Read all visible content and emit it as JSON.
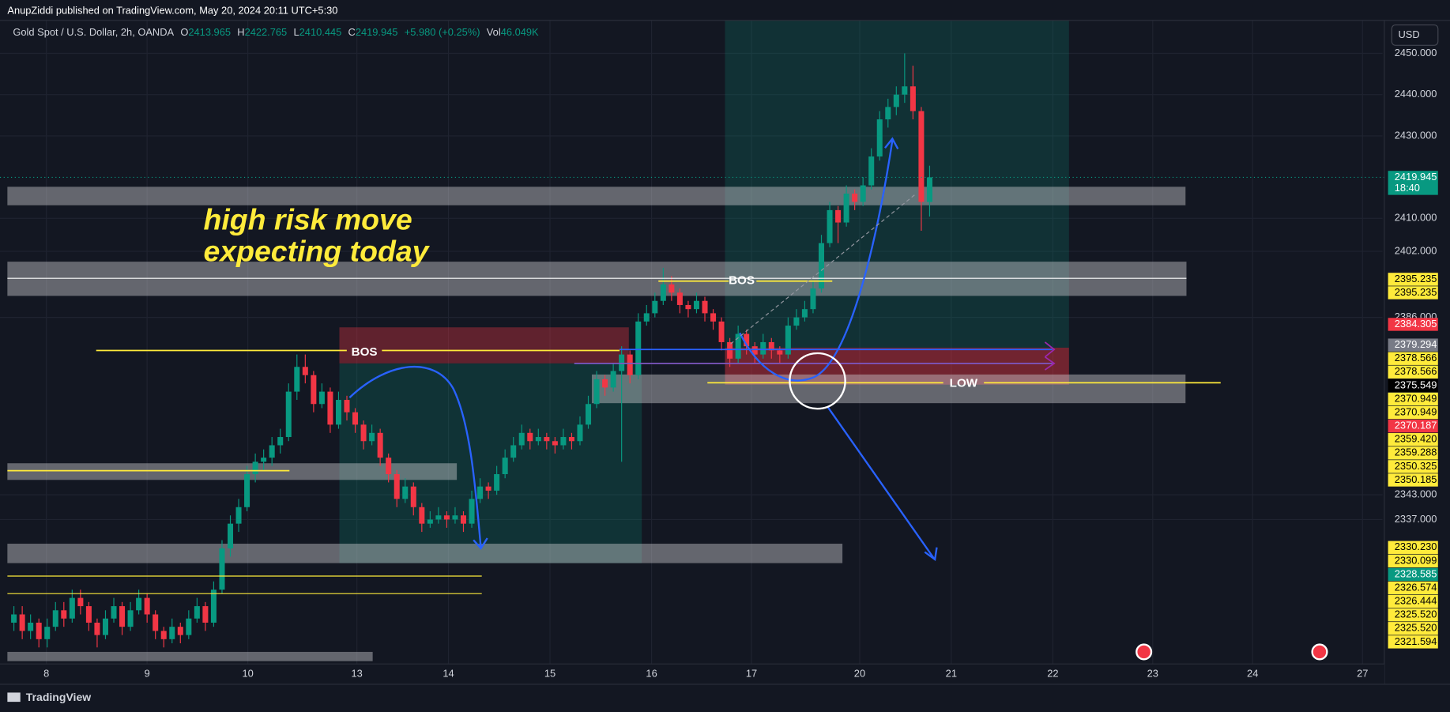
{
  "chart_data": {
    "type": "candlestick",
    "publisher": "AnupZiddi published on TradingView.com, May 20, 2024 20:11 UTC+5:30",
    "title": "Gold Spot / U.S. Dollar, 2h, OANDA",
    "legend": {
      "labels": [
        "O",
        "H",
        "L",
        "C"
      ],
      "change": "+5.980 (+0.25%)",
      "volume_label": "Vol",
      "volume": "46.049K"
    },
    "currency": "USD",
    "brand": "TradingView",
    "up_color": "#089981",
    "down_color": "#f23645",
    "grid": true,
    "ylim": [
      2302,
      2458
    ],
    "yticks": [
      {
        "value": 2450,
        "label": "2450.000"
      },
      {
        "value": 2440,
        "label": "2440.000"
      },
      {
        "value": 2430,
        "label": "2430.000"
      },
      {
        "value": 2410,
        "label": "2410.000"
      },
      {
        "value": 2402,
        "label": "2402.000"
      },
      {
        "value": 2386,
        "label": "2386.000"
      },
      {
        "value": 2343,
        "label": "2343.000"
      },
      {
        "value": 2337,
        "label": "2337.000"
      }
    ],
    "xlim": [
      -1.67,
      164.4
    ],
    "xticks": [
      {
        "value": 3.9,
        "label": "8"
      },
      {
        "value": 16,
        "label": "9"
      },
      {
        "value": 28.1,
        "label": "10"
      },
      {
        "value": 41.2,
        "label": "13"
      },
      {
        "value": 52.2,
        "label": "14"
      },
      {
        "value": 64.4,
        "label": "15"
      },
      {
        "value": 76.6,
        "label": "16"
      },
      {
        "value": 88.6,
        "label": "17"
      },
      {
        "value": 101.6,
        "label": "20"
      },
      {
        "value": 112.6,
        "label": "21"
      },
      {
        "value": 124.8,
        "label": "22"
      },
      {
        "value": 136.8,
        "label": "23"
      },
      {
        "value": 148.8,
        "label": "24"
      },
      {
        "value": 162,
        "label": "27"
      }
    ],
    "ohlc": [
      [
        2312,
        2316,
        2310,
        2314
      ],
      [
        2314,
        2316,
        2308,
        2310
      ],
      [
        2310,
        2314,
        2308,
        2312
      ],
      [
        2312,
        2313,
        2306,
        2308
      ],
      [
        2308,
        2313,
        2306,
        2311
      ],
      [
        2311,
        2317,
        2310,
        2315
      ],
      [
        2315,
        2317,
        2311,
        2313
      ],
      [
        2313,
        2320,
        2312,
        2318
      ],
      [
        2318,
        2320,
        2314,
        2316
      ],
      [
        2316,
        2317,
        2310,
        2312
      ],
      [
        2312,
        2313,
        2306,
        2309
      ],
      [
        2309,
        2315,
        2308,
        2313
      ],
      [
        2313,
        2318,
        2312,
        2316
      ],
      [
        2316,
        2317,
        2309,
        2311
      ],
      [
        2311,
        2317,
        2310,
        2315
      ],
      [
        2315,
        2320,
        2314,
        2318
      ],
      [
        2318,
        2319,
        2312,
        2314
      ],
      [
        2314,
        2315,
        2308,
        2310
      ],
      [
        2310,
        2311,
        2306,
        2308
      ],
      [
        2308,
        2313,
        2307,
        2311
      ],
      [
        2311,
        2312,
        2307,
        2309
      ],
      [
        2309,
        2315,
        2308,
        2313
      ],
      [
        2313,
        2318,
        2312,
        2316
      ],
      [
        2316,
        2317,
        2310,
        2312
      ],
      [
        2312,
        2322,
        2311,
        2320
      ],
      [
        2320,
        2332,
        2319,
        2330
      ],
      [
        2330,
        2338,
        2328,
        2336
      ],
      [
        2336,
        2342,
        2334,
        2340
      ],
      [
        2340,
        2350,
        2339,
        2348
      ],
      [
        2348,
        2353,
        2346,
        2351
      ],
      [
        2351,
        2354,
        2349,
        2352
      ],
      [
        2352,
        2357,
        2350,
        2355
      ],
      [
        2355,
        2359,
        2353,
        2357
      ],
      [
        2357,
        2370,
        2356,
        2368
      ],
      [
        2368,
        2377,
        2366,
        2374
      ],
      [
        2374,
        2377,
        2370,
        2372
      ],
      [
        2372,
        2373,
        2363,
        2365
      ],
      [
        2365,
        2370,
        2364,
        2368
      ],
      [
        2368,
        2369,
        2358,
        2360
      ],
      [
        2360,
        2368,
        2359,
        2366
      ],
      [
        2366,
        2367,
        2361,
        2363
      ],
      [
        2363,
        2364,
        2358,
        2360
      ],
      [
        2360,
        2361,
        2354,
        2356
      ],
      [
        2356,
        2360,
        2355,
        2358
      ],
      [
        2358,
        2359,
        2350,
        2352
      ],
      [
        2352,
        2353,
        2346,
        2348
      ],
      [
        2348,
        2349,
        2340,
        2342
      ],
      [
        2342,
        2347,
        2341,
        2345
      ],
      [
        2345,
        2346,
        2338,
        2340
      ],
      [
        2340,
        2341,
        2334,
        2336
      ],
      [
        2336,
        2339,
        2335,
        2337
      ],
      [
        2337,
        2340,
        2336,
        2338
      ],
      [
        2338,
        2339,
        2335,
        2337
      ],
      [
        2337,
        2340,
        2336,
        2338
      ],
      [
        2338,
        2339,
        2334,
        2336
      ],
      [
        2336,
        2344,
        2335,
        2342
      ],
      [
        2342,
        2347,
        2341,
        2345
      ],
      [
        2345,
        2346,
        2342,
        2344
      ],
      [
        2344,
        2350,
        2343,
        2348
      ],
      [
        2348,
        2354,
        2347,
        2352
      ],
      [
        2352,
        2357,
        2351,
        2355
      ],
      [
        2355,
        2360,
        2354,
        2358
      ],
      [
        2358,
        2359,
        2354,
        2356
      ],
      [
        2356,
        2359,
        2355,
        2357
      ],
      [
        2357,
        2358,
        2354,
        2356
      ],
      [
        2356,
        2357,
        2353,
        2355
      ],
      [
        2355,
        2359,
        2354,
        2357
      ],
      [
        2357,
        2358,
        2354,
        2356
      ],
      [
        2356,
        2362,
        2355,
        2360
      ],
      [
        2360,
        2367,
        2359,
        2365
      ],
      [
        2365,
        2373,
        2364,
        2371
      ],
      [
        2371,
        2372,
        2367,
        2369
      ],
      [
        2369,
        2375,
        2368,
        2373
      ],
      [
        2373,
        2379,
        2351,
        2377
      ],
      [
        2377,
        2378,
        2370,
        2372
      ],
      [
        2372,
        2387,
        2371,
        2385
      ],
      [
        2385,
        2389,
        2384,
        2387
      ],
      [
        2387,
        2392,
        2386,
        2390
      ],
      [
        2390,
        2398,
        2389,
        2394
      ],
      [
        2394,
        2396,
        2390,
        2392
      ],
      [
        2392,
        2393,
        2387,
        2389
      ],
      [
        2389,
        2390,
        2386,
        2388
      ],
      [
        2388,
        2392,
        2387,
        2390
      ],
      [
        2390,
        2391,
        2385,
        2387
      ],
      [
        2387,
        2388,
        2383,
        2385
      ],
      [
        2385,
        2386,
        2378,
        2380
      ],
      [
        2380,
        2381,
        2374,
        2376
      ],
      [
        2376,
        2384,
        2375,
        2382
      ],
      [
        2382,
        2383,
        2377,
        2379
      ],
      [
        2379,
        2380,
        2375,
        2377
      ],
      [
        2377,
        2382,
        2376,
        2380
      ],
      [
        2380,
        2381,
        2376,
        2378
      ],
      [
        2378,
        2379,
        2375,
        2377
      ],
      [
        2377,
        2386,
        2376,
        2384
      ],
      [
        2384,
        2388,
        2383,
        2386
      ],
      [
        2386,
        2390,
        2385,
        2388
      ],
      [
        2388,
        2395,
        2387,
        2393
      ],
      [
        2393,
        2406,
        2392,
        2404
      ],
      [
        2404,
        2414,
        2403,
        2412
      ],
      [
        2412,
        2413,
        2404,
        2409
      ],
      [
        2409,
        2418,
        2408,
        2416
      ],
      [
        2416,
        2417,
        2412,
        2414
      ],
      [
        2414,
        2420,
        2413,
        2418
      ],
      [
        2418,
        2427,
        2417,
        2425
      ],
      [
        2425,
        2436,
        2424,
        2434
      ],
      [
        2434,
        2439,
        2432,
        2437
      ],
      [
        2437,
        2442,
        2435,
        2440
      ],
      [
        2440,
        2450,
        2438,
        2442
      ],
      [
        2442,
        2447,
        2434,
        2436
      ],
      [
        2436,
        2437,
        2407,
        2414
      ],
      [
        2413.965,
        2422.765,
        2410.445,
        2419.945
      ]
    ],
    "current": {
      "value": 2419.945,
      "label": "2419.945",
      "countdown": "18:40",
      "color": "#089981"
    },
    "price_labels": [
      {
        "value": 2395.235,
        "label": "2395.235",
        "color": "#ffeb3b"
      },
      {
        "value": 2395.235,
        "label": "2395.235",
        "color": "#ffeb3b"
      },
      {
        "value": 2384.305,
        "label": "2384.305",
        "color": "#f23645"
      },
      {
        "value": 2379.294,
        "label": "2379.294",
        "color": "#787b86"
      },
      {
        "value": 2378.566,
        "label": "2378.566",
        "color": "#ffeb3b"
      },
      {
        "value": 2378.566,
        "label": "2378.566",
        "color": "#ffeb3b"
      },
      {
        "value": 2375.549,
        "label": "2375.549",
        "color": "#000000"
      },
      {
        "value": 2370.949,
        "label": "2370.949",
        "color": "#ffeb3b"
      },
      {
        "value": 2370.949,
        "label": "2370.949",
        "color": "#ffeb3b"
      },
      {
        "value": 2370.187,
        "label": "2370.187",
        "color": "#f23645"
      },
      {
        "value": 2359.42,
        "label": "2359.420",
        "color": "#ffeb3b"
      },
      {
        "value": 2359.288,
        "label": "2359.288",
        "color": "#ffeb3b"
      },
      {
        "value": 2350.325,
        "label": "2350.325",
        "color": "#ffeb3b"
      },
      {
        "value": 2350.185,
        "label": "2350.185",
        "color": "#ffeb3b"
      },
      {
        "value": 2330.23,
        "label": "2330.230",
        "color": "#ffeb3b"
      },
      {
        "value": 2330.099,
        "label": "2330.099",
        "color": "#ffeb3b"
      },
      {
        "value": 2328.585,
        "label": "2328.585",
        "color": "#089981"
      },
      {
        "value": 2326.574,
        "label": "2326.574",
        "color": "#ffeb3b"
      },
      {
        "value": 2326.444,
        "label": "2326.444",
        "color": "#ffeb3b"
      },
      {
        "value": 2325.52,
        "label": "2325.520",
        "color": "#ffeb3b"
      },
      {
        "value": 2325.52,
        "label": "2325.520",
        "color": "#ffeb3b"
      },
      {
        "value": 2321.594,
        "label": "2321.594",
        "color": "#ffeb3b"
      }
    ],
    "annotations": {
      "note": [
        "high risk move",
        "expecting today"
      ],
      "bos": [
        "BOS",
        "BOS"
      ],
      "low": "LOW"
    }
  }
}
